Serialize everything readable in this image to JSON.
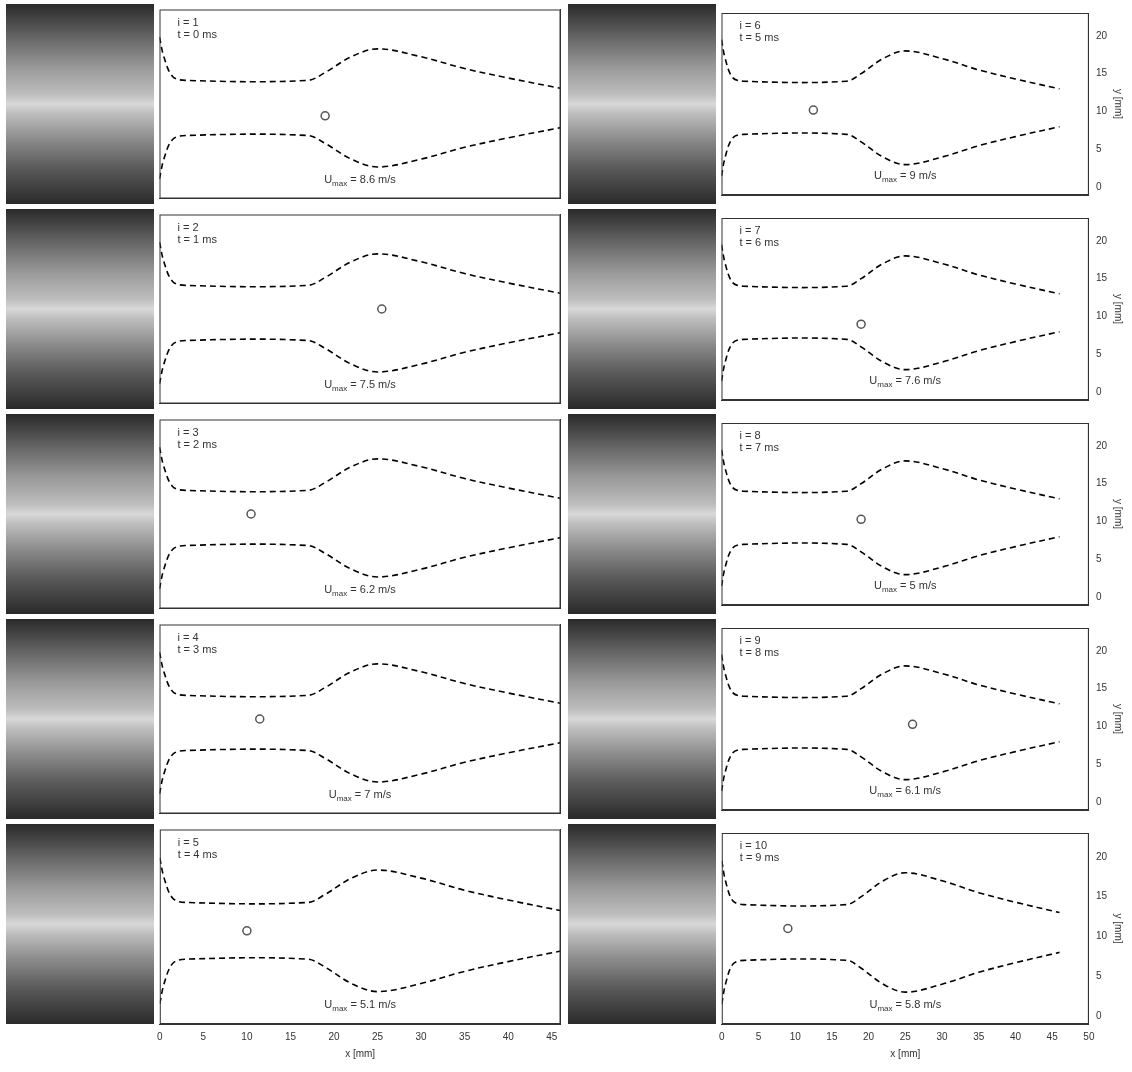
{
  "chart_data": [
    {
      "type": "line",
      "annotations": [
        "i = 1",
        "t = 0 ms"
      ],
      "umax": {
        "symbol": "U",
        "subscript": "max",
        "text": " = 8.6 m/s"
      },
      "xlim": [
        0,
        46
      ],
      "xticks": [
        0,
        5,
        10,
        15,
        20,
        25,
        30,
        35,
        40,
        45
      ],
      "ylim": [
        -1,
        23
      ],
      "yticks": [
        0,
        5,
        10,
        15,
        20
      ],
      "tick_labels": false,
      "grid": false,
      "series": [
        {
          "x": [
            0,
            0.5,
            1.5,
            3,
            17,
            19,
            22,
            25,
            30,
            35,
            40,
            46
          ],
          "values": [
            19.5,
            17,
            14.5,
            14,
            14,
            15,
            17,
            18,
            17,
            15.5,
            14.3,
            13
          ],
          "color": "#000000",
          "line_style": "dashed"
        },
        {
          "x": [
            0,
            0.5,
            1.5,
            3,
            17,
            19,
            22,
            25,
            30,
            35,
            40,
            46
          ],
          "values": [
            1.5,
            4,
            6.5,
            7,
            7,
            6,
            4,
            3,
            4,
            5.5,
            6.7,
            8
          ],
          "color": "#000000",
          "line_style": "dashed"
        },
        {
          "type": "scatter",
          "x": [
            19
          ],
          "values": [
            9.5
          ],
          "color": "#555555",
          "marker": "circle"
        }
      ]
    },
    {
      "type": "line",
      "annotations": [
        "i = 2",
        "t = 1 ms"
      ],
      "umax": {
        "symbol": "U",
        "subscript": "max",
        "text": " = 7.5 m/s"
      },
      "xlim": [
        0,
        46
      ],
      "xticks": [
        0,
        5,
        10,
        15,
        20,
        25,
        30,
        35,
        40,
        45
      ],
      "ylim": [
        -1,
        23
      ],
      "yticks": [
        0,
        5,
        10,
        15,
        20
      ],
      "tick_labels": false,
      "grid": false,
      "series": [
        {
          "x": [
            0,
            0.5,
            1.5,
            3,
            17,
            19,
            22,
            25,
            30,
            35,
            40,
            46
          ],
          "values": [
            19.5,
            17,
            14.5,
            14,
            14,
            15,
            17,
            18,
            17,
            15.5,
            14.3,
            13
          ],
          "color": "#000000",
          "line_style": "dashed"
        },
        {
          "x": [
            0,
            0.5,
            1.5,
            3,
            17,
            19,
            22,
            25,
            30,
            35,
            40,
            46
          ],
          "values": [
            1.5,
            4,
            6.5,
            7,
            7,
            6,
            4,
            3,
            4,
            5.5,
            6.7,
            8
          ],
          "color": "#000000",
          "line_style": "dashed"
        },
        {
          "type": "scatter",
          "x": [
            25.5
          ],
          "values": [
            11
          ],
          "color": "#555555",
          "marker": "circle"
        }
      ]
    },
    {
      "type": "line",
      "annotations": [
        "i = 3",
        "t = 2 ms"
      ],
      "umax": {
        "symbol": "U",
        "subscript": "max",
        "text": " = 6.2 m/s"
      },
      "xlim": [
        0,
        46
      ],
      "xticks": [
        0,
        5,
        10,
        15,
        20,
        25,
        30,
        35,
        40,
        45
      ],
      "ylim": [
        -1,
        23
      ],
      "yticks": [
        0,
        5,
        10,
        15,
        20
      ],
      "tick_labels": false,
      "grid": false,
      "series": [
        {
          "x": [
            0,
            0.5,
            1.5,
            3,
            17,
            19,
            22,
            25,
            30,
            35,
            40,
            46
          ],
          "values": [
            19.5,
            17,
            14.5,
            14,
            14,
            15,
            17,
            18,
            17,
            15.5,
            14.3,
            13
          ],
          "color": "#000000",
          "line_style": "dashed"
        },
        {
          "x": [
            0,
            0.5,
            1.5,
            3,
            17,
            19,
            22,
            25,
            30,
            35,
            40,
            46
          ],
          "values": [
            1.5,
            4,
            6.5,
            7,
            7,
            6,
            4,
            3,
            4,
            5.5,
            6.7,
            8
          ],
          "color": "#000000",
          "line_style": "dashed"
        },
        {
          "type": "scatter",
          "x": [
            10.5
          ],
          "values": [
            11
          ],
          "color": "#555555",
          "marker": "circle"
        }
      ]
    },
    {
      "type": "line",
      "annotations": [
        "i = 4",
        "t = 3 ms"
      ],
      "umax": {
        "symbol": "U",
        "subscript": "max",
        "text": " = 7 m/s"
      },
      "xlim": [
        0,
        46
      ],
      "xticks": [
        0,
        5,
        10,
        15,
        20,
        25,
        30,
        35,
        40,
        45
      ],
      "ylim": [
        -1,
        23
      ],
      "yticks": [
        0,
        5,
        10,
        15,
        20
      ],
      "tick_labels": false,
      "grid": false,
      "series": [
        {
          "x": [
            0,
            0.5,
            1.5,
            3,
            17,
            19,
            22,
            25,
            30,
            35,
            40,
            46
          ],
          "values": [
            19.5,
            17,
            14.5,
            14,
            14,
            15,
            17,
            18,
            17,
            15.5,
            14.3,
            13
          ],
          "color": "#000000",
          "line_style": "dashed"
        },
        {
          "x": [
            0,
            0.5,
            1.5,
            3,
            17,
            19,
            22,
            25,
            30,
            35,
            40,
            46
          ],
          "values": [
            1.5,
            4,
            6.5,
            7,
            7,
            6,
            4,
            3,
            4,
            5.5,
            6.7,
            8
          ],
          "color": "#000000",
          "line_style": "dashed"
        },
        {
          "type": "scatter",
          "x": [
            11.5
          ],
          "values": [
            11
          ],
          "color": "#555555",
          "marker": "circle"
        }
      ]
    },
    {
      "type": "line",
      "annotations": [
        "i = 5",
        "t = 4 ms"
      ],
      "umax": {
        "symbol": "U",
        "subscript": "max",
        "text": " = 5.1 m/s"
      },
      "xlim": [
        0,
        46
      ],
      "xticks": [
        0,
        5,
        10,
        15,
        20,
        25,
        30,
        35,
        40,
        45
      ],
      "ylim": [
        -1,
        23
      ],
      "yticks": [
        0,
        5,
        10,
        15,
        20
      ],
      "tick_labels": "x",
      "grid": false,
      "x_label": "x [mm]",
      "series": [
        {
          "x": [
            0,
            0.5,
            1.5,
            3,
            17,
            19,
            22,
            25,
            30,
            35,
            40,
            46
          ],
          "values": [
            19.5,
            17,
            14.5,
            14,
            14,
            15,
            17,
            18,
            17,
            15.5,
            14.3,
            13
          ],
          "color": "#000000",
          "line_style": "dashed"
        },
        {
          "x": [
            0,
            0.5,
            1.5,
            3,
            17,
            19,
            22,
            25,
            30,
            35,
            40,
            46
          ],
          "values": [
            1.5,
            4,
            6.5,
            7,
            7,
            6,
            4,
            3,
            4,
            5.5,
            6.7,
            8
          ],
          "color": "#000000",
          "line_style": "dashed"
        },
        {
          "type": "scatter",
          "x": [
            10
          ],
          "values": [
            10.5
          ],
          "color": "#555555",
          "marker": "circle"
        }
      ]
    },
    {
      "type": "line",
      "annotations": [
        "i = 6",
        "t = 5 ms"
      ],
      "umax": {
        "symbol": "U",
        "subscript": "max",
        "text": " = 9 m/s"
      },
      "xlim": [
        0,
        50
      ],
      "xticks": [
        0,
        5,
        10,
        15,
        20,
        25,
        30,
        35,
        40,
        45,
        50
      ],
      "ylim": [
        -1,
        23
      ],
      "yticks": [
        0,
        5,
        10,
        15,
        20
      ],
      "tick_labels": "y",
      "grid": false,
      "y_label": "y [mm]",
      "series": [
        {
          "x": [
            0,
            0.5,
            1.5,
            3,
            17,
            19,
            22,
            25,
            30,
            35,
            40,
            46
          ],
          "values": [
            19.5,
            17,
            14.5,
            14,
            14,
            15,
            17,
            18,
            17,
            15.5,
            14.3,
            13
          ],
          "color": "#000000",
          "line_style": "dashed"
        },
        {
          "x": [
            0,
            0.5,
            1.5,
            3,
            17,
            19,
            22,
            25,
            30,
            35,
            40,
            46
          ],
          "values": [
            1.5,
            4,
            6.5,
            7,
            7,
            6,
            4,
            3,
            4,
            5.5,
            6.7,
            8
          ],
          "color": "#000000",
          "line_style": "dashed"
        },
        {
          "type": "scatter",
          "x": [
            12.5
          ],
          "values": [
            10.2
          ],
          "color": "#555555",
          "marker": "circle"
        }
      ]
    },
    {
      "type": "line",
      "annotations": [
        "i = 7",
        "t = 6 ms"
      ],
      "umax": {
        "symbol": "U",
        "subscript": "max",
        "text": " = 7.6 m/s"
      },
      "xlim": [
        0,
        50
      ],
      "xticks": [
        0,
        5,
        10,
        15,
        20,
        25,
        30,
        35,
        40,
        45,
        50
      ],
      "ylim": [
        -1,
        23
      ],
      "yticks": [
        0,
        5,
        10,
        15,
        20
      ],
      "tick_labels": "y",
      "grid": false,
      "y_label": "y [mm]",
      "series": [
        {
          "x": [
            0,
            0.5,
            1.5,
            3,
            17,
            19,
            22,
            25,
            30,
            35,
            40,
            46
          ],
          "values": [
            19.5,
            17,
            14.5,
            14,
            14,
            15,
            17,
            18,
            17,
            15.5,
            14.3,
            13
          ],
          "color": "#000000",
          "line_style": "dashed"
        },
        {
          "x": [
            0,
            0.5,
            1.5,
            3,
            17,
            19,
            22,
            25,
            30,
            35,
            40,
            46
          ],
          "values": [
            1.5,
            4,
            6.5,
            7,
            7,
            6,
            4,
            3,
            4,
            5.5,
            6.7,
            8
          ],
          "color": "#000000",
          "line_style": "dashed"
        },
        {
          "type": "scatter",
          "x": [
            19
          ],
          "values": [
            9
          ],
          "color": "#555555",
          "marker": "circle"
        }
      ]
    },
    {
      "type": "line",
      "annotations": [
        "i = 8",
        "t = 7 ms"
      ],
      "umax": {
        "symbol": "U",
        "subscript": "max",
        "text": " = 5 m/s"
      },
      "xlim": [
        0,
        50
      ],
      "xticks": [
        0,
        5,
        10,
        15,
        20,
        25,
        30,
        35,
        40,
        45,
        50
      ],
      "ylim": [
        -1,
        23
      ],
      "yticks": [
        0,
        5,
        10,
        15,
        20
      ],
      "tick_labels": "y",
      "grid": false,
      "y_label": "y [mm]",
      "series": [
        {
          "x": [
            0,
            0.5,
            1.5,
            3,
            17,
            19,
            22,
            25,
            30,
            35,
            40,
            46
          ],
          "values": [
            19.5,
            17,
            14.5,
            14,
            14,
            15,
            17,
            18,
            17,
            15.5,
            14.3,
            13
          ],
          "color": "#000000",
          "line_style": "dashed"
        },
        {
          "x": [
            0,
            0.5,
            1.5,
            3,
            17,
            19,
            22,
            25,
            30,
            35,
            40,
            46
          ],
          "values": [
            1.5,
            4,
            6.5,
            7,
            7,
            6,
            4,
            3,
            4,
            5.5,
            6.7,
            8
          ],
          "color": "#000000",
          "line_style": "dashed"
        },
        {
          "type": "scatter",
          "x": [
            19
          ],
          "values": [
            10.3
          ],
          "color": "#555555",
          "marker": "circle"
        }
      ]
    },
    {
      "type": "line",
      "annotations": [
        "i = 9",
        "t = 8 ms"
      ],
      "umax": {
        "symbol": "U",
        "subscript": "max",
        "text": " = 6.1 m/s"
      },
      "xlim": [
        0,
        50
      ],
      "xticks": [
        0,
        5,
        10,
        15,
        20,
        25,
        30,
        35,
        40,
        45,
        50
      ],
      "ylim": [
        -1,
        23
      ],
      "yticks": [
        0,
        5,
        10,
        15,
        20
      ],
      "tick_labels": "y",
      "grid": false,
      "y_label": "y [mm]",
      "series": [
        {
          "x": [
            0,
            0.5,
            1.5,
            3,
            17,
            19,
            22,
            25,
            30,
            35,
            40,
            46
          ],
          "values": [
            19.5,
            17,
            14.5,
            14,
            14,
            15,
            17,
            18,
            17,
            15.5,
            14.3,
            13
          ],
          "color": "#000000",
          "line_style": "dashed"
        },
        {
          "x": [
            0,
            0.5,
            1.5,
            3,
            17,
            19,
            22,
            25,
            30,
            35,
            40,
            46
          ],
          "values": [
            1.5,
            4,
            6.5,
            7,
            7,
            6,
            4,
            3,
            4,
            5.5,
            6.7,
            8
          ],
          "color": "#000000",
          "line_style": "dashed"
        },
        {
          "type": "scatter",
          "x": [
            26
          ],
          "values": [
            10.3
          ],
          "color": "#555555",
          "marker": "circle"
        }
      ]
    },
    {
      "type": "line",
      "annotations": [
        "i = 10",
        "t = 9 ms"
      ],
      "umax": {
        "symbol": "U",
        "subscript": "max",
        "text": " = 5.8 m/s"
      },
      "xlim": [
        0,
        50
      ],
      "xticks": [
        0,
        5,
        10,
        15,
        20,
        25,
        30,
        35,
        40,
        45,
        50
      ],
      "ylim": [
        -1,
        23
      ],
      "yticks": [
        0,
        5,
        10,
        15,
        20
      ],
      "tick_labels": true,
      "grid": false,
      "x_label": "x [mm]",
      "y_label": "y [mm]",
      "series": [
        {
          "x": [
            0,
            0.5,
            1.5,
            3,
            17,
            19,
            22,
            25,
            30,
            35,
            40,
            46
          ],
          "values": [
            19.5,
            17,
            14.5,
            14,
            14,
            15,
            17,
            18,
            17,
            15.5,
            14.3,
            13
          ],
          "color": "#000000",
          "line_style": "dashed"
        },
        {
          "x": [
            0,
            0.5,
            1.5,
            3,
            17,
            19,
            22,
            25,
            30,
            35,
            40,
            46
          ],
          "values": [
            1.5,
            4,
            6.5,
            7,
            7,
            6,
            4,
            3,
            4,
            5.5,
            6.7,
            8
          ],
          "color": "#000000",
          "line_style": "dashed"
        },
        {
          "type": "scatter",
          "x": [
            9
          ],
          "values": [
            11
          ],
          "color": "#555555",
          "marker": "circle"
        }
      ]
    }
  ]
}
